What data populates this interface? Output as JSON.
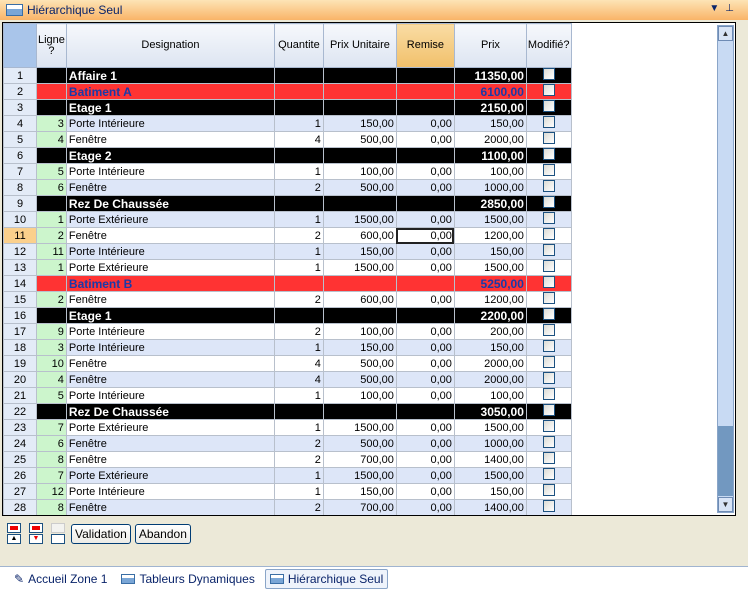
{
  "title": "Hiérarchique Seul",
  "columns": [
    "Ligne ?",
    "Designation",
    "Quantite",
    "Prix Unitaire",
    "Remise",
    "Prix",
    "Modifié?"
  ],
  "rows": [
    {
      "n": "1",
      "type": "black",
      "ligne": "",
      "des": "Affaire 1",
      "q": "",
      "pu": "",
      "rem": "",
      "prix": "11350,00"
    },
    {
      "n": "2",
      "type": "red",
      "ligne": "",
      "des": "Batiment A",
      "q": "",
      "pu": "",
      "rem": "",
      "prix": "6100,00"
    },
    {
      "n": "3",
      "type": "black",
      "ligne": "",
      "des": "Etage 1",
      "q": "",
      "pu": "",
      "rem": "",
      "prix": "2150,00"
    },
    {
      "n": "4",
      "type": "data",
      "ligne": "3",
      "des": "Porte Intérieure",
      "q": "1",
      "pu": "150,00",
      "rem": "0,00",
      "prix": "150,00"
    },
    {
      "n": "5",
      "type": "data",
      "ligne": "4",
      "des": "Fenêtre",
      "q": "4",
      "pu": "500,00",
      "rem": "0,00",
      "prix": "2000,00"
    },
    {
      "n": "6",
      "type": "black",
      "ligne": "",
      "des": "Etage 2",
      "q": "",
      "pu": "",
      "rem": "",
      "prix": "1100,00"
    },
    {
      "n": "7",
      "type": "data",
      "ligne": "5",
      "des": "Porte Intérieure",
      "q": "1",
      "pu": "100,00",
      "rem": "0,00",
      "prix": "100,00"
    },
    {
      "n": "8",
      "type": "data",
      "ligne": "6",
      "des": "Fenêtre",
      "q": "2",
      "pu": "500,00",
      "rem": "0,00",
      "prix": "1000,00"
    },
    {
      "n": "9",
      "type": "black",
      "ligne": "",
      "des": "Rez De Chaussée",
      "q": "",
      "pu": "",
      "rem": "",
      "prix": "2850,00"
    },
    {
      "n": "10",
      "type": "data",
      "ligne": "1",
      "des": "Porte Extérieure",
      "q": "1",
      "pu": "1500,00",
      "rem": "0,00",
      "prix": "1500,00"
    },
    {
      "n": "11",
      "type": "data",
      "ligne": "2",
      "des": "Fenêtre",
      "q": "2",
      "pu": "600,00",
      "rem": "0,00",
      "prix": "1200,00",
      "selected": true
    },
    {
      "n": "12",
      "type": "data",
      "ligne": "11",
      "des": "Porte Intérieure",
      "q": "1",
      "pu": "150,00",
      "rem": "0,00",
      "prix": "150,00"
    },
    {
      "n": "13",
      "type": "data",
      "ligne": "1",
      "des": "Porte Extérieure",
      "q": "1",
      "pu": "1500,00",
      "rem": "0,00",
      "prix": "1500,00"
    },
    {
      "n": "14",
      "type": "red",
      "ligne": "",
      "des": "Batiment B",
      "q": "",
      "pu": "",
      "rem": "",
      "prix": "5250,00"
    },
    {
      "n": "15",
      "type": "data",
      "ligne": "2",
      "des": "Fenêtre",
      "q": "2",
      "pu": "600,00",
      "rem": "0,00",
      "prix": "1200,00"
    },
    {
      "n": "16",
      "type": "black",
      "ligne": "",
      "des": "Etage 1",
      "q": "",
      "pu": "",
      "rem": "",
      "prix": "2200,00"
    },
    {
      "n": "17",
      "type": "data",
      "ligne": "9",
      "des": "Porte Intérieure",
      "q": "2",
      "pu": "100,00",
      "rem": "0,00",
      "prix": "200,00"
    },
    {
      "n": "18",
      "type": "data",
      "ligne": "3",
      "des": "Porte Intérieure",
      "q": "1",
      "pu": "150,00",
      "rem": "0,00",
      "prix": "150,00"
    },
    {
      "n": "19",
      "type": "data",
      "ligne": "10",
      "des": "Fenêtre",
      "q": "4",
      "pu": "500,00",
      "rem": "0,00",
      "prix": "2000,00"
    },
    {
      "n": "20",
      "type": "data",
      "ligne": "4",
      "des": "Fenêtre",
      "q": "4",
      "pu": "500,00",
      "rem": "0,00",
      "prix": "2000,00"
    },
    {
      "n": "21",
      "type": "data",
      "ligne": "5",
      "des": "Porte Intérieure",
      "q": "1",
      "pu": "100,00",
      "rem": "0,00",
      "prix": "100,00"
    },
    {
      "n": "22",
      "type": "black",
      "ligne": "",
      "des": "Rez De Chaussée",
      "q": "",
      "pu": "",
      "rem": "",
      "prix": "3050,00"
    },
    {
      "n": "23",
      "type": "data",
      "ligne": "7",
      "des": "Porte Extérieure",
      "q": "1",
      "pu": "1500,00",
      "rem": "0,00",
      "prix": "1500,00"
    },
    {
      "n": "24",
      "type": "data",
      "ligne": "6",
      "des": "Fenêtre",
      "q": "2",
      "pu": "500,00",
      "rem": "0,00",
      "prix": "1000,00"
    },
    {
      "n": "25",
      "type": "data",
      "ligne": "8",
      "des": "Fenêtre",
      "q": "2",
      "pu": "700,00",
      "rem": "0,00",
      "prix": "1400,00"
    },
    {
      "n": "26",
      "type": "data",
      "ligne": "7",
      "des": "Porte Extérieure",
      "q": "1",
      "pu": "1500,00",
      "rem": "0,00",
      "prix": "1500,00"
    },
    {
      "n": "27",
      "type": "data",
      "ligne": "12",
      "des": "Porte Intérieure",
      "q": "1",
      "pu": "150,00",
      "rem": "0,00",
      "prix": "150,00"
    },
    {
      "n": "28",
      "type": "data",
      "ligne": "8",
      "des": "Fenêtre",
      "q": "2",
      "pu": "700,00",
      "rem": "0,00",
      "prix": "1400,00"
    }
  ],
  "buttons": {
    "validation": "Validation",
    "abandon": "Abandon"
  },
  "tabs": [
    {
      "label": "Accueil Zone 1",
      "icon": "pencil-icon"
    },
    {
      "label": "Tableurs Dynamiques",
      "icon": "grid-refresh-icon"
    },
    {
      "label": "Hiérarchique Seul",
      "icon": "grid-refresh-icon",
      "active": true
    }
  ]
}
